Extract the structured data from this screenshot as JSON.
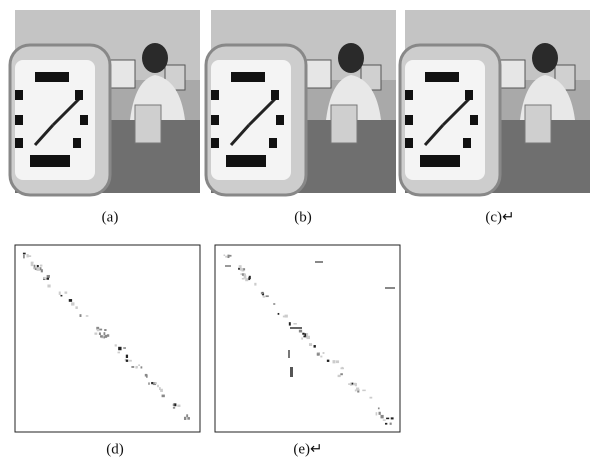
{
  "figure": {
    "captions": [
      "(a)",
      "(b)",
      "(c)↵",
      "(d)",
      "(e)↵"
    ]
  }
}
